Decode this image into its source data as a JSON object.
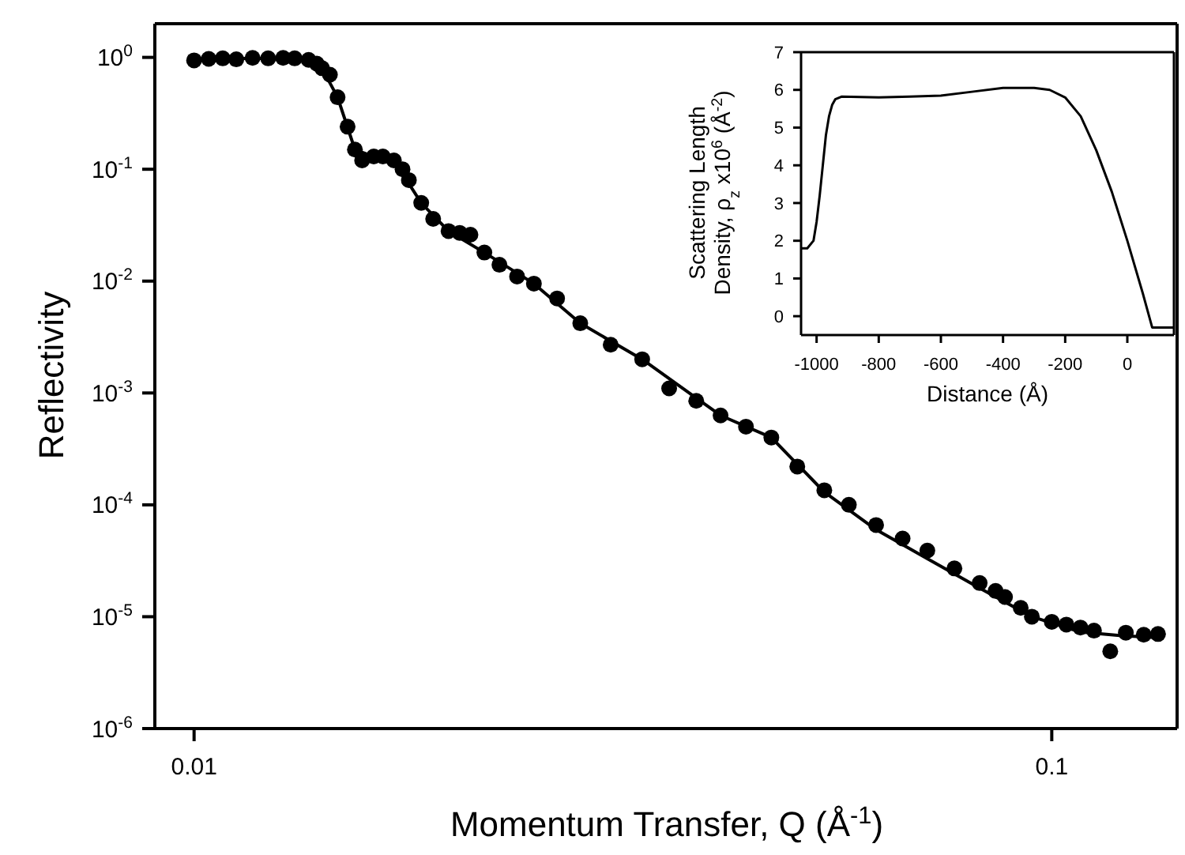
{
  "chart_data": [
    {
      "type": "scatter",
      "xlabel": "Momentum Transfer, Q (Å$^{-1}$)",
      "ylabel": "Reflectivity",
      "log": "xy",
      "xlim": [
        0.009,
        0.14
      ],
      "ylim": [
        1e-06,
        2
      ],
      "xticks": [
        0.01,
        0.1
      ],
      "yticks": [
        {
          "value": 1e-06,
          "label": "10$^{-6}$"
        },
        {
          "value": 1e-05,
          "label": "10$^{-5}$"
        },
        {
          "value": 0.0001,
          "label": "10$^{-4}$"
        },
        {
          "value": 0.001,
          "label": "10$^{-3}$"
        },
        {
          "value": 0.01,
          "label": "10$^{-2}$"
        },
        {
          "value": 0.1,
          "label": "10$^{-1}$"
        },
        {
          "value": 1,
          "label": "10$^{0}$"
        }
      ],
      "series": [
        {
          "marker": "circle",
          "color": "#000000",
          "x": [
            0.01,
            0.0104,
            0.0108,
            0.0112,
            0.0117,
            0.0122,
            0.0127,
            0.0131,
            0.0136,
            0.0139,
            0.0141,
            0.0144,
            0.0147,
            0.0151,
            0.0154,
            0.0157,
            0.0162,
            0.0166,
            0.0171,
            0.0175,
            0.0178,
            0.0184,
            0.019,
            0.0198,
            0.0204,
            0.021,
            0.0218,
            0.0227,
            0.0238,
            0.0249,
            0.0265,
            0.0282,
            0.0306,
            0.0333,
            0.0358,
            0.0385,
            0.0411,
            0.044,
            0.0471,
            0.0505,
            0.0543,
            0.058,
            0.0624,
            0.067,
            0.0716,
            0.077,
            0.0824,
            0.086,
            0.0882,
            0.092,
            0.0948,
            0.1,
            0.104,
            0.108,
            0.112,
            0.117,
            0.122,
            0.128,
            0.133
          ],
          "values": [
            0.94,
            0.97,
            0.98,
            0.96,
            0.99,
            0.98,
            0.99,
            0.98,
            0.95,
            0.88,
            0.8,
            0.7,
            0.44,
            0.24,
            0.15,
            0.12,
            0.13,
            0.13,
            0.12,
            0.1,
            0.08,
            0.05,
            0.036,
            0.028,
            0.027,
            0.026,
            0.018,
            0.014,
            0.011,
            0.0095,
            0.007,
            0.0042,
            0.0027,
            0.002,
            0.0011,
            0.00085,
            0.00063,
            0.0005,
            0.0004,
            0.00022,
            0.000135,
            0.0001,
            6.6e-05,
            5e-05,
            3.9e-05,
            2.7e-05,
            2e-05,
            1.7e-05,
            1.5e-05,
            1.2e-05,
            1e-05,
            9e-06,
            8.5e-06,
            8e-06,
            7.5e-06,
            4.9e-06,
            7.2e-06,
            6.9e-06,
            7e-06
          ]
        },
        {
          "type": "line",
          "color": "#000000",
          "x": [
            0.01,
            0.012,
            0.0136,
            0.0141,
            0.0147,
            0.0154,
            0.0162,
            0.0171,
            0.0184,
            0.0198,
            0.0218,
            0.0249,
            0.0282,
            0.0333,
            0.0411,
            0.0471,
            0.0543,
            0.0624,
            0.0716,
            0.0824,
            0.0948,
            0.108,
            0.12,
            0.133
          ],
          "values": [
            0.97,
            0.98,
            0.95,
            0.8,
            0.44,
            0.15,
            0.13,
            0.12,
            0.05,
            0.028,
            0.018,
            0.0095,
            0.0042,
            0.002,
            0.00063,
            0.0004,
            0.00013,
            6e-05,
            3.3e-05,
            1.8e-05,
            1e-05,
            7.3e-06,
            6.8e-06,
            6.5e-06
          ]
        }
      ]
    },
    {
      "type": "line",
      "xlabel": "Distance (Å)",
      "ylabel": "Scattering Length Density, ρ$_{z}$ x10$^{6}$ (Å$^{-2}$)",
      "xlim": [
        -1050,
        150
      ],
      "ylim": [
        -0.5,
        7
      ],
      "xticks": [
        -1000,
        -800,
        -600,
        -400,
        -200,
        0
      ],
      "yticks": [
        0,
        1,
        2,
        3,
        4,
        5,
        6,
        7
      ],
      "color": "#000000",
      "x": [
        -1050,
        -1030,
        -1010,
        -1000,
        -990,
        -980,
        -970,
        -960,
        -950,
        -940,
        -920,
        -800,
        -700,
        -600,
        -500,
        -400,
        -300,
        -250,
        -200,
        -150,
        -100,
        -50,
        0,
        50,
        80,
        150
      ],
      "values": [
        1.8,
        1.8,
        2.0,
        2.5,
        3.2,
        4.0,
        4.8,
        5.3,
        5.6,
        5.75,
        5.82,
        5.8,
        5.82,
        5.85,
        5.95,
        6.05,
        6.05,
        6.0,
        5.8,
        5.3,
        4.4,
        3.3,
        2.0,
        0.6,
        -0.3,
        -0.3
      ]
    }
  ]
}
